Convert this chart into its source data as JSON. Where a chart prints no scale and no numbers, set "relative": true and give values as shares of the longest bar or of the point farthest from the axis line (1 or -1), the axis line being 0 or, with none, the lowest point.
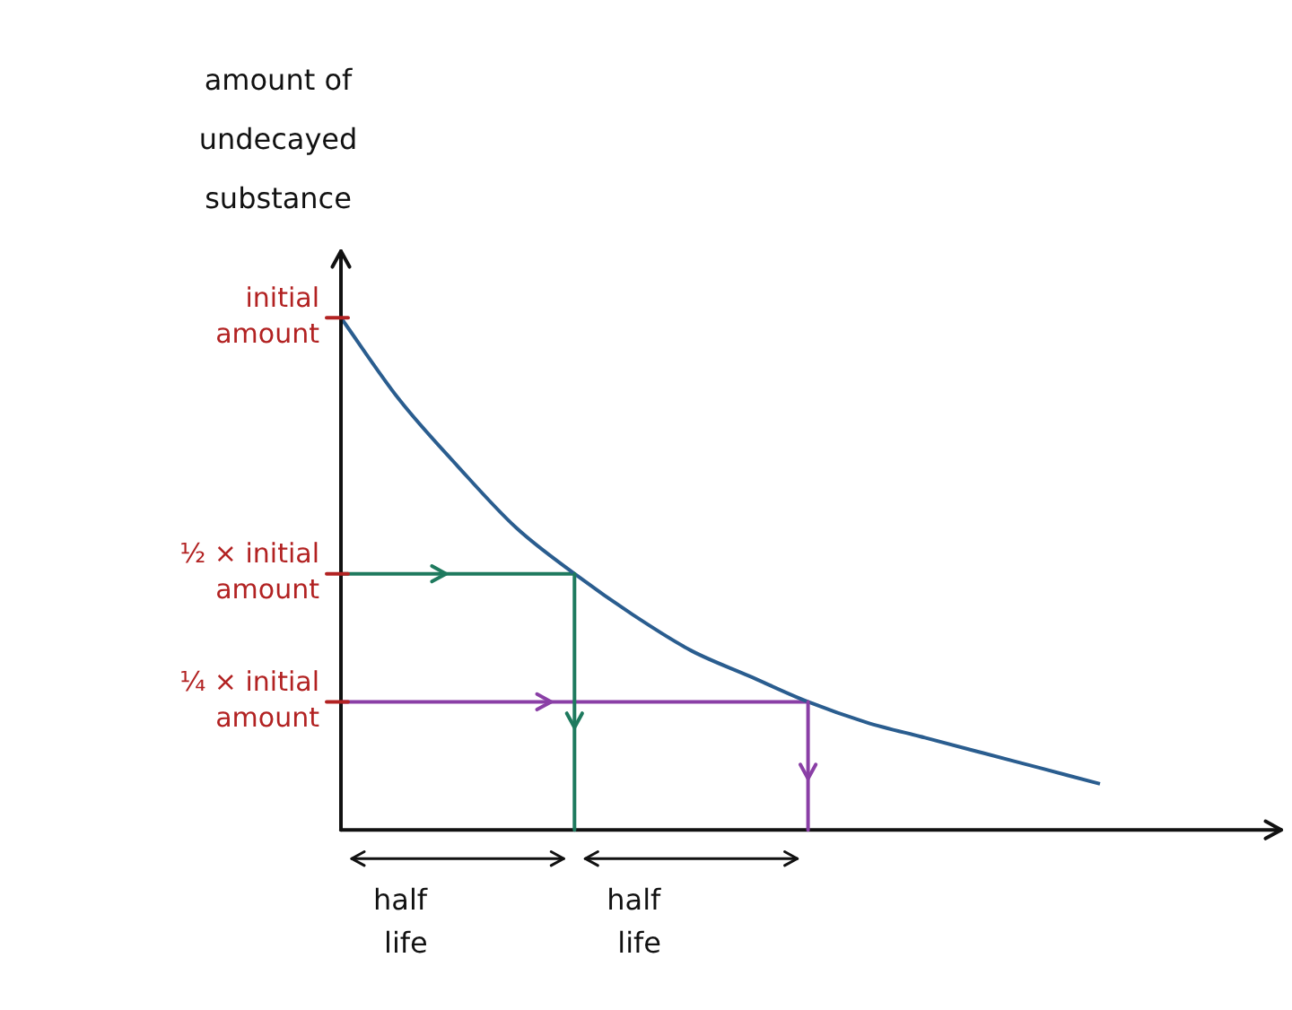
{
  "chart_data": {
    "type": "line",
    "relative": true,
    "ylabel": "amount of undecayed substance",
    "categories": [
      null,
      null,
      null,
      null,
      null,
      null,
      null,
      null,
      null,
      null,
      null,
      null,
      null,
      null
    ],
    "series": [
      {
        "color": "#2a5d8f",
        "values": [
          1,
          0.84,
          0.71,
          0.59,
          0.5,
          0.42,
          0.35,
          0.3,
          0.25,
          0.21,
          0.18,
          0.15,
          0.12,
          0.09
        ]
      },
      {
        "color": "#1e7a5e",
        "values": [
          0.5,
          0.5,
          0.5,
          0.5,
          0.5,
          null,
          null,
          null,
          null,
          null,
          null,
          null,
          null,
          null
        ]
      },
      {
        "color": "#8a3fa6",
        "values": [
          0.25,
          0.25,
          0.25,
          0.25,
          0.25,
          0.25,
          0.25,
          0.25,
          0.25,
          null,
          null,
          null,
          null,
          null
        ]
      }
    ],
    "ref_lines": [
      {
        "axis": "y",
        "value": 1,
        "label": "initial amount",
        "color": "#b22222"
      },
      {
        "axis": "y",
        "value": 0.5,
        "label": "½ × initial amount",
        "color": "#b22222"
      },
      {
        "axis": "y",
        "value": 0.25,
        "label": "¼ × initial amount",
        "color": "#b22222"
      }
    ],
    "annotations": [
      "half life",
      "half life"
    ],
    "marker": "none",
    "grid": false,
    "legend": false
  }
}
